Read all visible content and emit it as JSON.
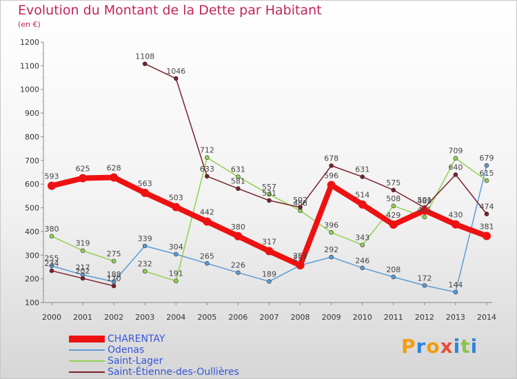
{
  "chart_data": {
    "type": "line",
    "title": "Evolution du Montant de la Dette par Habitant",
    "subtitle": "(en €)",
    "x": [
      "2000",
      "2001",
      "2002",
      "2003",
      "2004",
      "2005",
      "2006",
      "2007",
      "2008",
      "2009",
      "2010",
      "2011",
      "2012",
      "2013",
      "2014"
    ],
    "ylim": [
      100,
      1200
    ],
    "yticks": [
      100,
      200,
      300,
      400,
      500,
      600,
      700,
      800,
      900,
      1000,
      1100,
      1200
    ],
    "grid": false,
    "legend_position": "bottom-left",
    "series": [
      {
        "name": "CHARENTAY",
        "color": "#ee1111",
        "values": [
          593,
          625,
          628,
          563,
          503,
          442,
          380,
          317,
          257,
          596,
          514,
          429,
          489,
          430,
          381
        ]
      },
      {
        "name": "Odenas",
        "color": "#5b9bd5",
        "values": [
          255,
          217,
          188,
          339,
          304,
          265,
          226,
          189,
          257,
          292,
          246,
          208,
          172,
          144,
          679
        ]
      },
      {
        "name": "Saint-Lager",
        "color": "#92d050",
        "values": [
          380,
          319,
          275,
          232,
          191,
          712,
          631,
          557,
          488,
          396,
          343,
          508,
          461,
          709,
          615
        ]
      },
      {
        "name": "Saint-Étienne-des-Oullières",
        "color": "#7a1f2a",
        "values": [
          234,
          202,
          170,
          1108,
          1046,
          633,
          581,
          531,
          502,
          678,
          631,
          575,
          501,
          640,
          474
        ]
      }
    ],
    "gaps": {
      "Saint-Lager": [
        2
      ],
      "Saint-Étienne-des-Oullières": [
        2
      ]
    }
  },
  "legend": {
    "items": [
      "CHARENTAY",
      "Odenas",
      "Saint-Lager",
      "Saint-Étienne-des-Oullières"
    ]
  },
  "logo": {
    "letters": [
      "P",
      "r",
      "o",
      "x",
      "i",
      "t",
      "i"
    ],
    "colors": [
      "#f39c12",
      "#2e86de",
      "#f39c12",
      "#e74c3c",
      "#2e86de",
      "#8bc34a",
      "#2e86de"
    ]
  }
}
